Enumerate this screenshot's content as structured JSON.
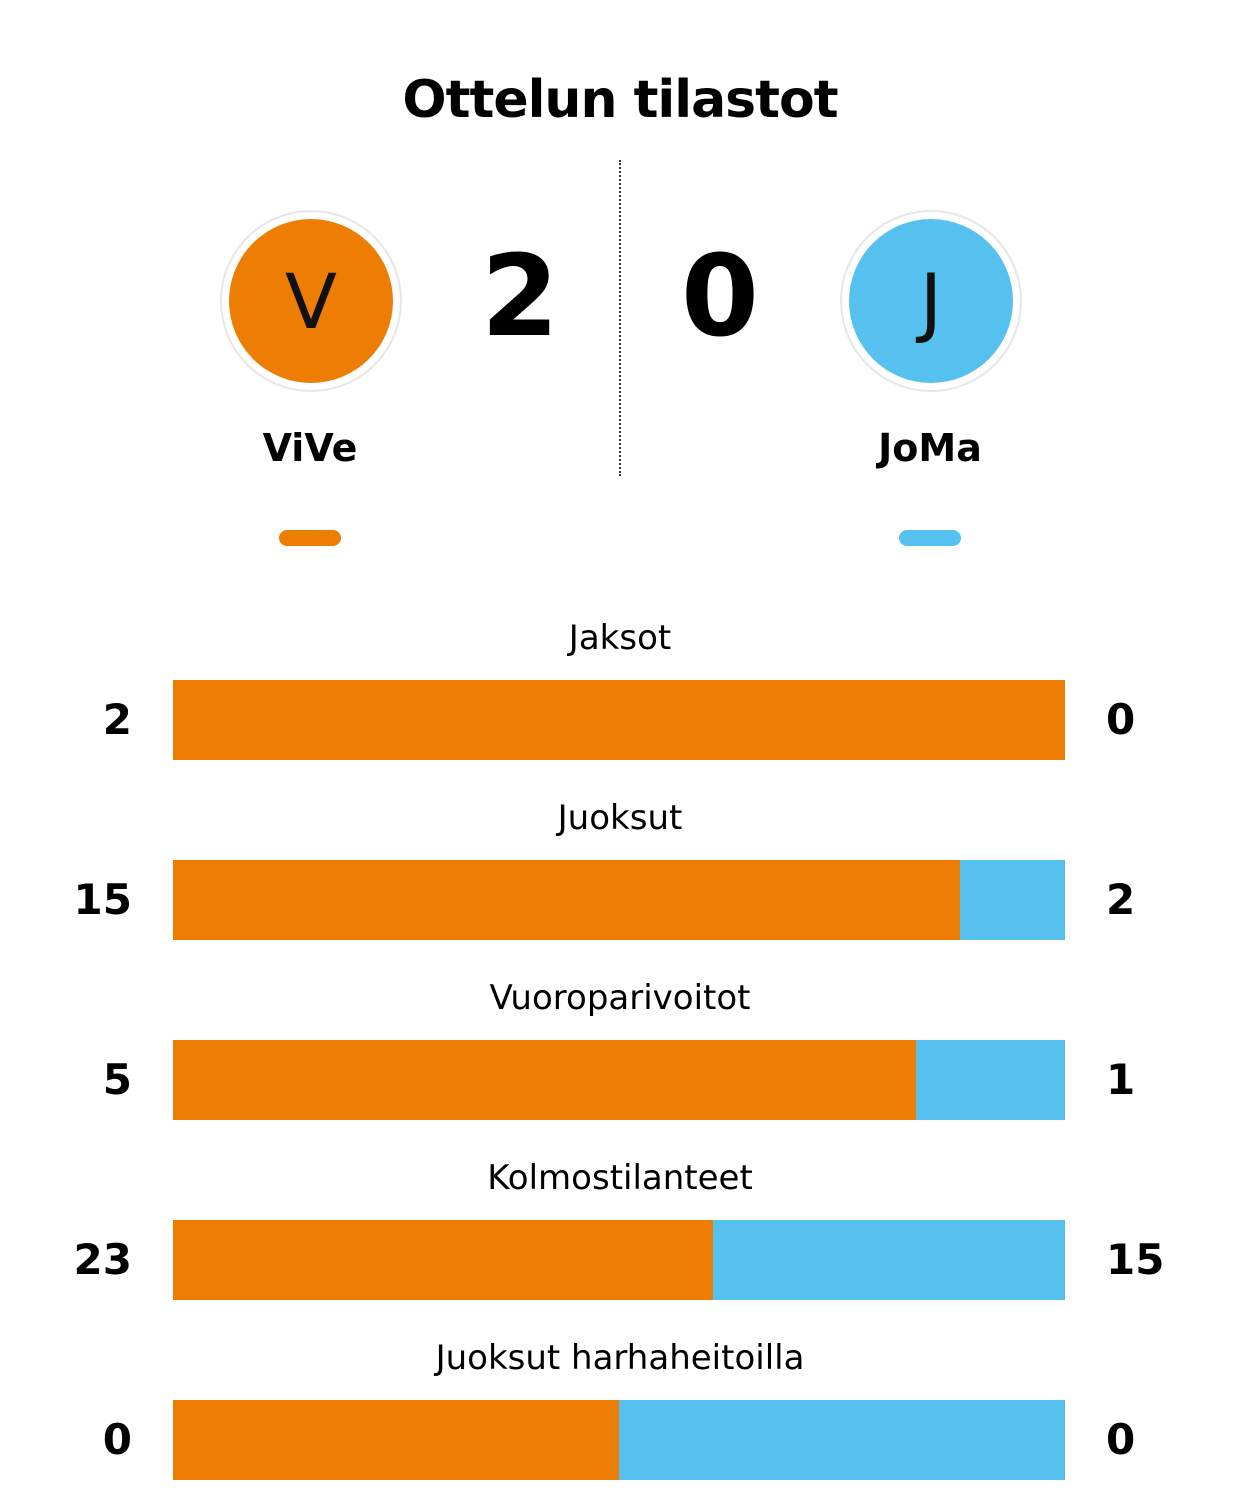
{
  "title": "Ottelun tilastot",
  "colors": {
    "home": "#EE7D03",
    "away": "#56C1EF"
  },
  "teams": {
    "home": {
      "initial": "V",
      "name": "ViVe",
      "score": "2"
    },
    "away": {
      "initial": "J",
      "name": "JoMa",
      "score": "0"
    }
  },
  "chart_data": {
    "type": "bar",
    "orientation": "horizontal-stacked-share",
    "series": [
      {
        "name": "ViVe",
        "values": [
          2,
          15,
          5,
          23,
          0
        ]
      },
      {
        "name": "JoMa",
        "values": [
          0,
          2,
          1,
          15,
          0
        ]
      }
    ],
    "categories": [
      "Jaksot",
      "Juoksut",
      "Vuoroparivoitot",
      "Kolmostilanteet",
      "Juoksut harhaheitoilla"
    ],
    "stats": [
      {
        "label": "Jaksot",
        "home": "2",
        "away": "0"
      },
      {
        "label": "Juoksut",
        "home": "15",
        "away": "2"
      },
      {
        "label": "Vuoroparivoitot",
        "home": "5",
        "away": "1"
      },
      {
        "label": "Kolmostilanteet",
        "home": "23",
        "away": "15"
      },
      {
        "label": "Juoksut harhaheitoilla",
        "home": "0",
        "away": "0"
      }
    ]
  }
}
